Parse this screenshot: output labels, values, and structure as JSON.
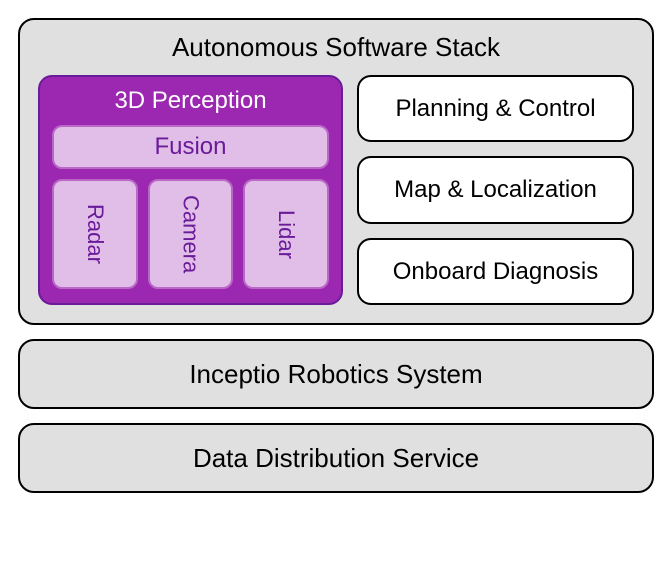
{
  "colors": {
    "layer_bg": "#e0e0e0",
    "layer_border": "#000000",
    "perception_bg": "#9c27b0",
    "perception_border": "#6a1b9a",
    "fusion_bg": "#e1bee7",
    "fusion_border": "#ba68c8",
    "sensor_bg": "#e1bee7",
    "sensor_border": "#ba68c8",
    "right_bg": "#ffffff",
    "right_border": "#000000",
    "perception_title_color": "#ffffff",
    "fusion_text_color": "#6a1b9a",
    "sensor_text_color": "#6a1b9a",
    "default_text_color": "#000000"
  },
  "fonts": {
    "title_size": 26,
    "subtitle_size": 24,
    "box_size": 24,
    "sensor_size": 22,
    "weight_normal": 400,
    "weight_medium": 400
  },
  "top": {
    "title": "Autonomous Software Stack",
    "perception": {
      "title": "3D Perception",
      "fusion": "Fusion",
      "sensors": [
        "Radar",
        "Camera",
        "Lidar"
      ]
    },
    "right": [
      "Planning & Control",
      "Map & Localization",
      "Onboard Diagnosis"
    ]
  },
  "mid": {
    "title": "Inceptio Robotics System"
  },
  "bottom": {
    "title": "Data Distribution Service"
  }
}
